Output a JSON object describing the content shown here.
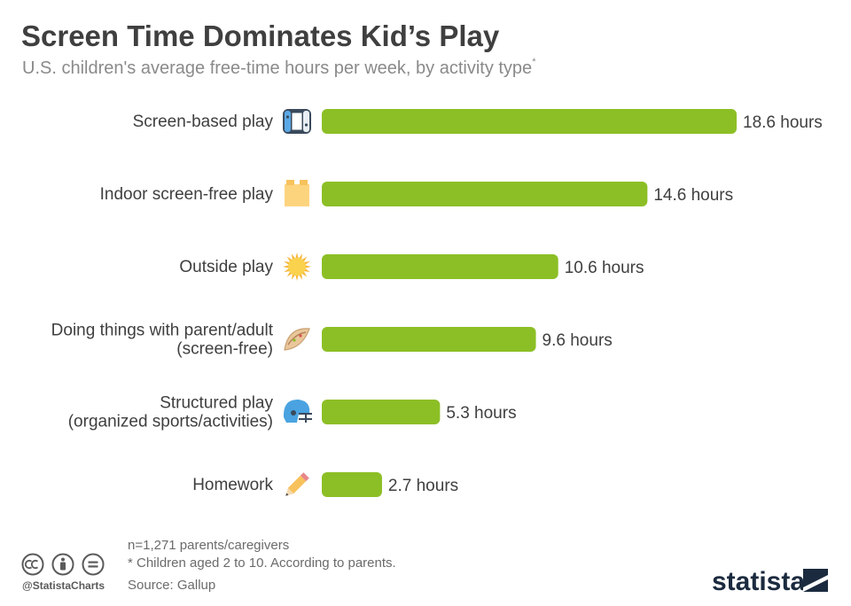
{
  "header": {
    "title": "Screen Time Dominates Kid’s Play",
    "subtitle": "U.S. children's average free-time hours per week, by activity type",
    "subtitle_mark": "*"
  },
  "chart_data": {
    "type": "bar",
    "orientation": "horizontal",
    "categories": [
      "Screen-based play",
      "Indoor screen-free play",
      "Outside play",
      "Doing things with parent/adult (screen-free)",
      "Structured play (organized sports/activities)",
      "Homework"
    ],
    "category_lines": [
      [
        "Screen-based play"
      ],
      [
        "Indoor screen-free play"
      ],
      [
        "Outside play"
      ],
      [
        "Doing things with parent/adult",
        "(screen-free)"
      ],
      [
        "Structured play",
        "(organized sports/activities)"
      ],
      [
        "Homework"
      ]
    ],
    "values": [
      18.6,
      14.6,
      10.6,
      9.6,
      5.3,
      2.7
    ],
    "value_labels": [
      "18.6 hours",
      "14.6 hours",
      "10.6 hours",
      "9.6 hours",
      "5.3 hours",
      "2.7 hours"
    ],
    "icons": [
      "game-controller-icon",
      "toy-block-icon",
      "sun-icon",
      "taco-icon",
      "football-helmet-icon",
      "pencil-icon"
    ],
    "unit": "hours",
    "bar_color": "#8cbf26",
    "grid": false,
    "legend": "none"
  },
  "footer": {
    "note_sample": "n=1,271 parents/caregivers",
    "note_age": "* Children aged 2 to 10. According to parents.",
    "source": "Source: Gallup",
    "handle": "@StatistaCharts",
    "logo_text": "statista"
  }
}
